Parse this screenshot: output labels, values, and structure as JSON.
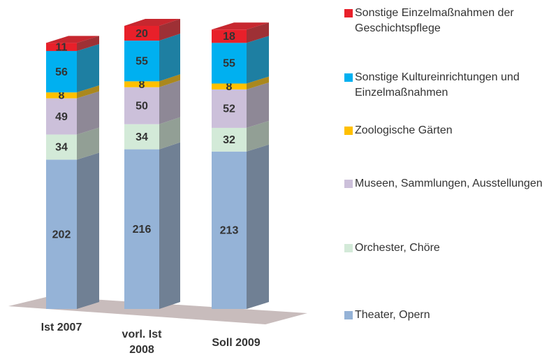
{
  "chart_data": {
    "type": "bar3d_stacked",
    "categories": [
      "Ist 2007",
      "vorl. Ist 2008",
      "Soll 2009"
    ],
    "series": [
      {
        "name": "Theater, Opern",
        "color": "#95b3d7",
        "values": [
          202,
          216,
          213
        ]
      },
      {
        "name": "Orchester, Chöre",
        "color": "#d3ead8",
        "values": [
          34,
          34,
          32
        ]
      },
      {
        "name": "Museen, Sammlungen, Ausstellungen",
        "color": "#ccc0da",
        "values": [
          49,
          50,
          52
        ]
      },
      {
        "name": "Zoologische Gärten",
        "color": "#ffc000",
        "values": [
          8,
          8,
          8
        ]
      },
      {
        "name": "Sonstige Kultureinrichtungen und Einzelmaßnahmen",
        "color": "#00b0f0",
        "values": [
          56,
          55,
          55
        ]
      },
      {
        "name": "Sonstige Einzelmaßnahmen der Geschichtspflege",
        "color": "#e8202a",
        "values": [
          11,
          20,
          18
        ]
      }
    ]
  }
}
